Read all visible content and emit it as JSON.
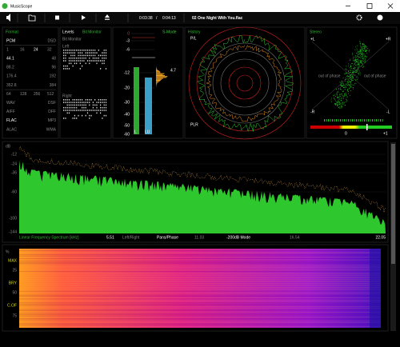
{
  "window": {
    "title": "MusicScope"
  },
  "toolbar": {
    "elapsed": "0:03:38",
    "separator": "/",
    "total": "0:04:13",
    "track": "02 One Night With You.flac"
  },
  "format": {
    "title": "Format",
    "rows": [
      [
        "PCM",
        "DSD"
      ],
      [
        "1",
        "16",
        "24",
        "32"
      ],
      [
        "44.1",
        "48"
      ],
      [
        "88.2",
        "96"
      ],
      [
        "176.4",
        "192"
      ],
      [
        "352.8",
        "384"
      ],
      [
        "64",
        "128",
        "256",
        "512"
      ],
      [
        "WAV",
        "DSF"
      ],
      [
        "AIFF",
        "DFF"
      ],
      [
        "FLAC",
        "MP3"
      ],
      [
        "ALAC",
        "WMA"
      ]
    ],
    "active": [
      [
        0,
        0
      ],
      [
        1,
        2
      ],
      [
        2,
        0
      ],
      [
        9,
        0
      ]
    ]
  },
  "levels": {
    "title": "Levels",
    "mode": "Bit Monitor",
    "sub": "Bit Monitor",
    "left": "Left",
    "right": "Right"
  },
  "meter": {
    "mode": "S-Mode",
    "scale": [
      "0",
      "-3",
      "-6",
      "-12",
      "-20",
      "-30",
      "-40",
      "-50",
      "-60"
    ],
    "peak": "4.7",
    "left": "L",
    "right": "LU"
  },
  "history": {
    "title": "History",
    "top": "P/L",
    "bottom": "PLR"
  },
  "stereo": {
    "title": "Stereo",
    "top_left": "+L",
    "top_right": "+R",
    "bottom_left": "-R",
    "bottom_right": "-L",
    "left_phase": "out of phase",
    "right_phase": "out of phase",
    "zero": "0",
    "plus": "+1"
  },
  "spectrum": {
    "unit": "dB",
    "ticks": [
      "-12",
      "-24",
      "-36",
      "-60",
      "-100",
      "-144"
    ],
    "labels": [
      "Linear Frequency Spectrum [kHz]",
      "5.51",
      "Left/Right",
      "Pans/Phase",
      "11.03",
      "-200dB Mode",
      "16.54",
      "22.05"
    ]
  },
  "spectrogram": {
    "unit": "%",
    "labels": [
      "MAX",
      "25",
      "BRY",
      "50",
      "C.OF",
      "75"
    ]
  }
}
